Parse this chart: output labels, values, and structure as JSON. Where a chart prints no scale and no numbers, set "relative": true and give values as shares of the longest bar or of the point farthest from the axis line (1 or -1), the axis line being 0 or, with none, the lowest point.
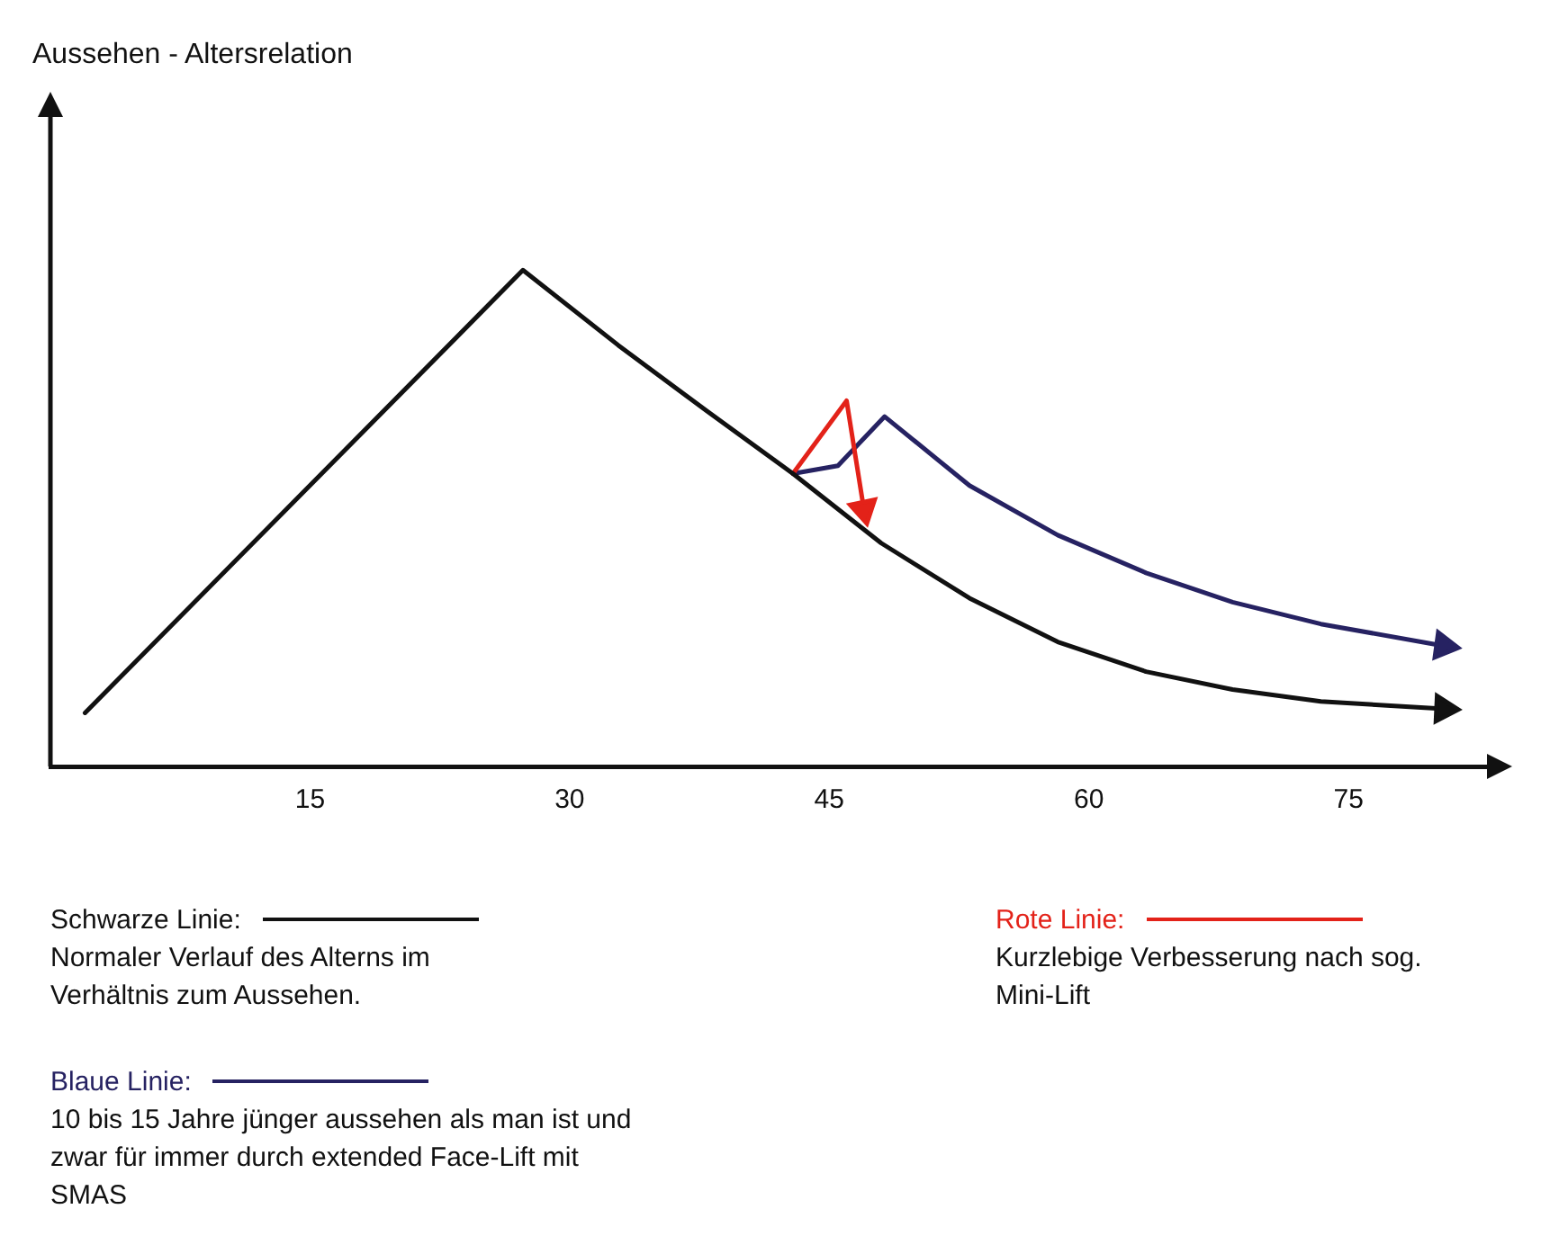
{
  "chart_data": {
    "type": "line",
    "relative": true,
    "xlim": [
      0,
      83
    ],
    "xticks": [
      15,
      30,
      45,
      60,
      75
    ],
    "grid": false,
    "legend": "bottom",
    "line_style": "solid",
    "series": [
      {
        "name": "Schwarze Linie:",
        "color": "#111111",
        "x": [
          2.0,
          27.3,
          32.8,
          37.9,
          42.9,
          48.0,
          53.1,
          58.2,
          63.3,
          68.3,
          73.4,
          80.5
        ],
        "values": [
          0.108,
          1,
          0.849,
          0.717,
          0.59,
          0.45,
          0.339,
          0.251,
          0.191,
          0.155,
          0.131,
          0.116
        ]
      },
      {
        "name": "Rote Linie:",
        "color": "#e32219",
        "x": [
          42.9,
          46.0,
          47.0
        ],
        "values": [
          0.59,
          0.737,
          0.518
        ]
      },
      {
        "name": "Blaue Linie:",
        "color": "#262262",
        "x": [
          42.9,
          45.5,
          48.2,
          53.1,
          58.2,
          63.3,
          68.3,
          73.4,
          80.5
        ],
        "values": [
          0.59,
          0.606,
          0.705,
          0.566,
          0.466,
          0.39,
          0.331,
          0.287,
          0.243
        ]
      }
    ],
    "annotations": [
      "Aussehen - Altersrelation",
      "Normaler Verlauf des Alterns im Verhältnis zum Aussehen.",
      "Kurzlebige Verbesserung nach sog. Mini-Lift",
      "10 bis 15 Jahre jünger aussehen als man ist und zwar für immer durch extended Face-Lift mit SMAS"
    ]
  }
}
